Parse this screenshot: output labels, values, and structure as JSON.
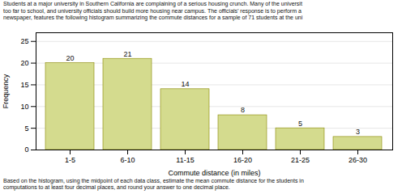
{
  "chart_data": {
    "type": "bar",
    "subtitle": [
      "Students at a major university in Southern California are complaining of a serious housing crunch. Many of the universit",
      "too far to school, and university officials should build more housing near campus. The officials’ response is to perform a",
      "newspaper, features the following histogram summarizing the commute distances for a sample of 71 students at the uni"
    ],
    "annotations": [
      "Based on the histogram, using the midpoint of each data class, estimate the mean commute distance for the students in",
      "computations to at least four decimal places, and round your answer to one decimal place."
    ],
    "x_label": "Commute distance (in miles)",
    "y_label": "Frequency",
    "categories": [
      "1-5",
      "6-10",
      "11-15",
      "16-20",
      "21-25",
      "26-30"
    ],
    "values": [
      20,
      21,
      14,
      8,
      5,
      3
    ],
    "color": "#d4db8e",
    "ylim": [
      0,
      27
    ],
    "yticks": [
      0,
      5,
      10,
      15,
      20,
      25
    ],
    "grid": true,
    "data_labels": true
  }
}
